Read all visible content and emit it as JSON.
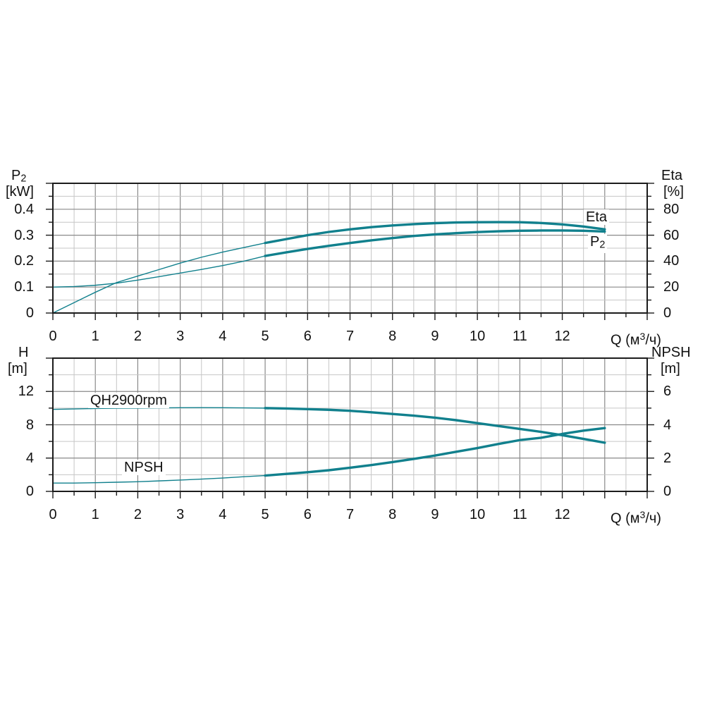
{
  "page": {
    "background": "#ffffff"
  },
  "colors": {
    "curve": "#11808d",
    "grid_minor": "#c6c6c6",
    "grid_major": "#8a8a8a",
    "axis_frame": "#1c1c1c",
    "text": "#111111"
  },
  "q_label": {
    "pre": "Q (м",
    "sup": "3",
    "post": "/ч)"
  },
  "chart_data": [
    {
      "type": "line",
      "x_axis": {
        "label": "Q (м³/ч)",
        "min": 0,
        "max": 14,
        "minor_step": 0.5,
        "major_step": 1,
        "tick_values": [
          0,
          1,
          2,
          3,
          4,
          5,
          6,
          7,
          8,
          9,
          10,
          11,
          12
        ],
        "tick_labels": [
          "0",
          "1",
          "2",
          "3",
          "4",
          "5",
          "6",
          "7",
          "8",
          "9",
          "10",
          "11",
          "12"
        ]
      },
      "left_axis": {
        "label": "P2",
        "label_main": "P",
        "label_sub": "2",
        "units": "[kW]",
        "min": 0,
        "max": 0.5,
        "minor_step": 0.05,
        "major_step": 0.1,
        "tick_values": [
          0,
          0.1,
          0.2,
          0.3,
          0.4
        ],
        "tick_labels": [
          "0",
          "0.1",
          "0.2",
          "0.3",
          "0.4"
        ]
      },
      "right_axis": {
        "label": "Eta",
        "units": "[%]",
        "min": 0,
        "max": 100,
        "minor_step": 10,
        "major_step": 20,
        "tick_values": [
          0,
          20,
          40,
          60,
          80
        ],
        "tick_labels": [
          "0",
          "20",
          "40",
          "60",
          "80"
        ]
      },
      "series": [
        {
          "name": "Eta",
          "label": "Eta",
          "axis": "right",
          "bold_from_x": 5,
          "points": [
            [
              0,
              0
            ],
            [
              0.25,
              4
            ],
            [
              0.5,
              8
            ],
            [
              0.75,
              12
            ],
            [
              1,
              16
            ],
            [
              1.5,
              23.5
            ],
            [
              2,
              28.5
            ],
            [
              2.5,
              33.5
            ],
            [
              3,
              38.5
            ],
            [
              3.5,
              43
            ],
            [
              4,
              47
            ],
            [
              4.5,
              50.5
            ],
            [
              5,
              54
            ],
            [
              5.5,
              57
            ],
            [
              6,
              60
            ],
            [
              6.5,
              62.5
            ],
            [
              7,
              64.5
            ],
            [
              7.5,
              66.2
            ],
            [
              8,
              67.5
            ],
            [
              8.5,
              68.5
            ],
            [
              9,
              69.3
            ],
            [
              9.5,
              69.8
            ],
            [
              10,
              70
            ],
            [
              10.5,
              70.1
            ],
            [
              11,
              70
            ],
            [
              11.5,
              69.4
            ],
            [
              12,
              68.3
            ],
            [
              12.5,
              66.7
            ],
            [
              13,
              64.5
            ]
          ]
        },
        {
          "name": "P2",
          "label": "P2",
          "label_main": "P",
          "label_sub": "2",
          "axis": "left",
          "bold_from_x": 5,
          "points": [
            [
              0,
              0.1
            ],
            [
              0.5,
              0.102
            ],
            [
              1,
              0.107
            ],
            [
              1.5,
              0.115
            ],
            [
              2,
              0.127
            ],
            [
              2.5,
              0.14
            ],
            [
              3,
              0.154
            ],
            [
              3.5,
              0.168
            ],
            [
              4,
              0.183
            ],
            [
              4.5,
              0.2
            ],
            [
              5,
              0.22
            ],
            [
              5.5,
              0.234
            ],
            [
              6,
              0.247
            ],
            [
              6.5,
              0.259
            ],
            [
              7,
              0.27
            ],
            [
              7.5,
              0.28
            ],
            [
              8,
              0.289
            ],
            [
              8.5,
              0.297
            ],
            [
              9,
              0.303
            ],
            [
              9.5,
              0.308
            ],
            [
              10,
              0.312
            ],
            [
              10.5,
              0.315
            ],
            [
              11,
              0.317
            ],
            [
              11.5,
              0.318
            ],
            [
              12,
              0.318
            ],
            [
              12.5,
              0.317
            ],
            [
              13,
              0.314
            ]
          ]
        }
      ]
    },
    {
      "type": "line",
      "x_axis": {
        "label": "Q (м³/ч)",
        "min": 0,
        "max": 14,
        "minor_step": 0.5,
        "major_step": 1,
        "tick_values": [
          0,
          1,
          2,
          3,
          4,
          5,
          6,
          7,
          8,
          9,
          10,
          11,
          12
        ],
        "tick_labels": [
          "0",
          "1",
          "2",
          "3",
          "4",
          "5",
          "6",
          "7",
          "8",
          "9",
          "10",
          "11",
          "12"
        ]
      },
      "left_axis": {
        "label": "H",
        "units": "[m]",
        "min": 0,
        "max": 16,
        "minor_step": 2,
        "major_step": 4,
        "tick_values": [
          0,
          4,
          8,
          12
        ],
        "tick_labels": [
          "0",
          "4",
          "8",
          "12"
        ]
      },
      "right_axis": {
        "label": "NPSH",
        "units": "[m]",
        "min": 0,
        "max": 8,
        "minor_step": 1,
        "major_step": 2,
        "tick_values": [
          0,
          2,
          4,
          6
        ],
        "tick_labels": [
          "0",
          "2",
          "4",
          "6"
        ]
      },
      "series": [
        {
          "name": "QH2900rpm",
          "label": "QH2900rpm",
          "axis": "left",
          "bold_from_x": 5,
          "points": [
            [
              0,
              9.85
            ],
            [
              0.5,
              9.9
            ],
            [
              1,
              9.95
            ],
            [
              1.5,
              9.98
            ],
            [
              2,
              10
            ],
            [
              2.5,
              10.03
            ],
            [
              3,
              10.05
            ],
            [
              3.5,
              10.06
            ],
            [
              4,
              10.05
            ],
            [
              4.5,
              10.03
            ],
            [
              5,
              10
            ],
            [
              5.5,
              9.95
            ],
            [
              6,
              9.88
            ],
            [
              6.5,
              9.8
            ],
            [
              7,
              9.68
            ],
            [
              7.5,
              9.5
            ],
            [
              8,
              9.3
            ],
            [
              8.5,
              9.1
            ],
            [
              9,
              8.85
            ],
            [
              9.5,
              8.55
            ],
            [
              10,
              8.2
            ],
            [
              10.5,
              7.85
            ],
            [
              11,
              7.5
            ],
            [
              11.5,
              7.15
            ],
            [
              12,
              6.75
            ],
            [
              12.5,
              6.3
            ],
            [
              13,
              5.85
            ]
          ]
        },
        {
          "name": "NPSH",
          "label": "NPSH",
          "axis": "right",
          "bold_from_x": 5,
          "points": [
            [
              0,
              0.5
            ],
            [
              0.5,
              0.5
            ],
            [
              1,
              0.52
            ],
            [
              1.5,
              0.55
            ],
            [
              2,
              0.58
            ],
            [
              2.5,
              0.63
            ],
            [
              3,
              0.68
            ],
            [
              3.5,
              0.74
            ],
            [
              4,
              0.8
            ],
            [
              4.5,
              0.88
            ],
            [
              5,
              0.95
            ],
            [
              5.5,
              1.05
            ],
            [
              6,
              1.15
            ],
            [
              6.5,
              1.27
            ],
            [
              7,
              1.42
            ],
            [
              7.5,
              1.58
            ],
            [
              8,
              1.76
            ],
            [
              8.5,
              1.95
            ],
            [
              9,
              2.15
            ],
            [
              9.5,
              2.38
            ],
            [
              10,
              2.6
            ],
            [
              10.5,
              2.85
            ],
            [
              11,
              3.08
            ],
            [
              11.5,
              3.22
            ],
            [
              12,
              3.45
            ],
            [
              12.5,
              3.65
            ],
            [
              13,
              3.8
            ]
          ]
        }
      ]
    }
  ]
}
